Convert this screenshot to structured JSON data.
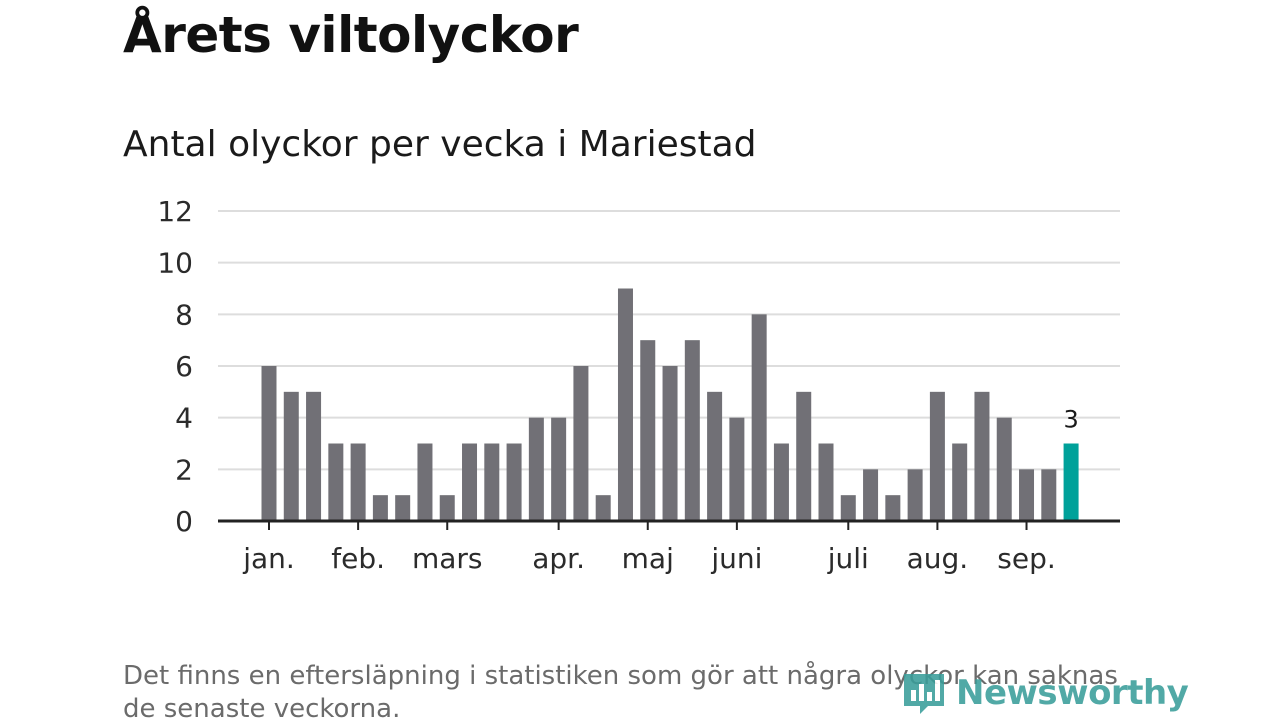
{
  "title": "Årets viltolyckor",
  "subtitle": "Antal olyckor per vecka i Mariestad",
  "footnote": "Det finns en eftersläpning i statistiken som gör att några olyckor kan saknas de senaste veckorna.",
  "brand": {
    "name": "Newsworthy",
    "icon": "bar-chart-icon",
    "color": "#3a9e9a"
  },
  "colors": {
    "bar": "#717076",
    "highlight": "#00a19a",
    "grid": "#dddddd",
    "axis": "#222222"
  },
  "chart_data": {
    "type": "bar",
    "y_ticks": [
      0,
      2,
      4,
      6,
      8,
      10,
      12
    ],
    "ylim": [
      0,
      12
    ],
    "grid": true,
    "values": [
      6,
      5,
      5,
      3,
      3,
      1,
      1,
      3,
      1,
      3,
      3,
      3,
      4,
      4,
      6,
      1,
      9,
      7,
      6,
      7,
      5,
      4,
      8,
      3,
      5,
      3,
      1,
      2,
      1,
      2,
      5,
      3,
      5,
      4,
      2,
      2,
      3
    ],
    "highlight_index": 36,
    "highlight_label": "3",
    "month_labels": [
      {
        "label": "jan.",
        "bar_index": 0
      },
      {
        "label": "feb.",
        "bar_index": 4
      },
      {
        "label": "mars",
        "bar_index": 8
      },
      {
        "label": "apr.",
        "bar_index": 13
      },
      {
        "label": "maj",
        "bar_index": 17
      },
      {
        "label": "juni",
        "bar_index": 21
      },
      {
        "label": "juli",
        "bar_index": 26
      },
      {
        "label": "aug.",
        "bar_index": 30
      },
      {
        "label": "sep.",
        "bar_index": 34
      }
    ]
  }
}
